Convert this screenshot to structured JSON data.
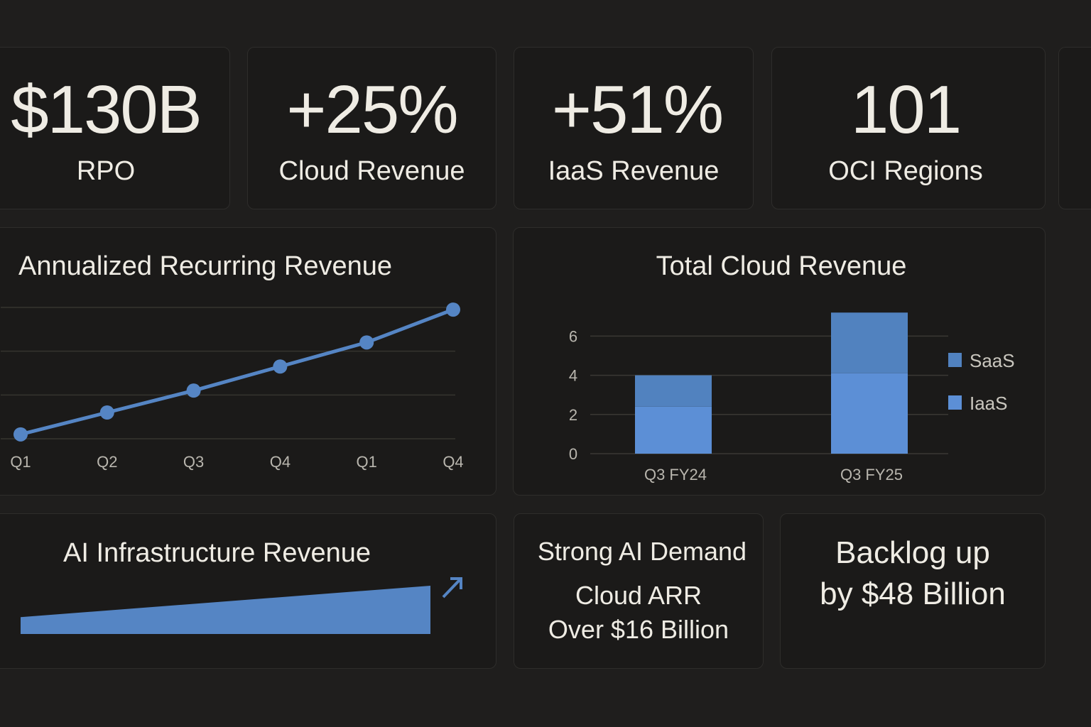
{
  "kpis": [
    {
      "value": "$130B",
      "label": "RPO"
    },
    {
      "value": "+25%",
      "label": "Cloud Revenue"
    },
    {
      "value": "+51%",
      "label": "IaaS Revenue"
    },
    {
      "value": "101",
      "label": "OCI Regions"
    }
  ],
  "colors": {
    "accent": "#5585c4",
    "accent_light": "#5c8fd6",
    "background": "#1f1e1d",
    "card": "#1b1a19",
    "text": "#efece4"
  },
  "chart_data": [
    {
      "type": "line",
      "title": "Annualized Recurring Revenue",
      "categories": [
        "Q1",
        "Q2",
        "Q3",
        "Q4",
        "Q1",
        "Q4"
      ],
      "series": [
        {
          "name": "ARR",
          "values": [
            0.1,
            0.6,
            1.1,
            1.65,
            2.2,
            2.95
          ]
        }
      ],
      "ylim": [
        0,
        3
      ],
      "grid": true,
      "yticks_visible": false,
      "xlabel": "",
      "ylabel": ""
    },
    {
      "type": "bar",
      "stacked": true,
      "title": "Total Cloud Revenue",
      "categories": [
        "Q3 FY24",
        "Q3 FY25"
      ],
      "series": [
        {
          "name": "IaaS",
          "values": [
            2.4,
            4.1
          ],
          "color": "#5c8fd6"
        },
        {
          "name": "SaaS",
          "values": [
            1.6,
            3.1
          ],
          "color": "#5182bf"
        }
      ],
      "yticks": [
        0,
        2,
        4,
        6
      ],
      "ylim": [
        0,
        7.2
      ],
      "legend": [
        "SaaS",
        "IaaS"
      ],
      "legend_position": "right",
      "grid": true,
      "xlabel": "",
      "ylabel": ""
    },
    {
      "type": "area",
      "title": "AI Infrastructure Revenue",
      "x": [
        0,
        1
      ],
      "values": [
        0.35,
        1.0
      ],
      "ylim": [
        0,
        1
      ],
      "trend_icon": "arrow-up-right"
    }
  ],
  "callouts": {
    "ai_demand": {
      "heading": "Strong AI Demand",
      "line1": "Cloud ARR",
      "line2": "Over $16 Billion"
    },
    "backlog": {
      "line1": "Backlog up",
      "line2": "by $48 Billion"
    }
  }
}
